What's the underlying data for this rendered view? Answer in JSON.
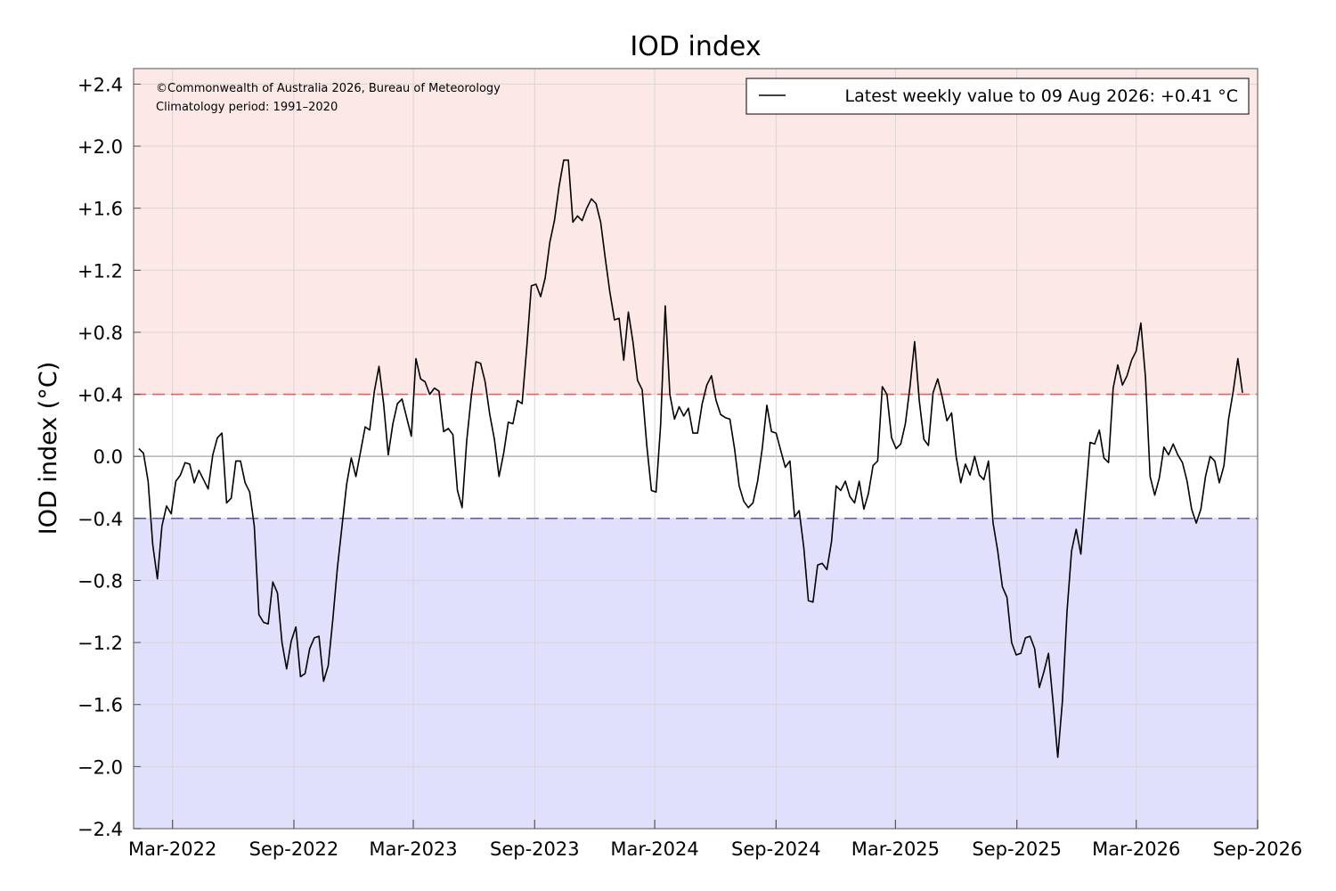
{
  "chart_data": {
    "type": "line",
    "title": "IOD index",
    "xlabel": "",
    "ylabel": "IOD index (°C)",
    "ylim": [
      -2.4,
      2.5
    ],
    "xlim": [
      "2022-01-01",
      "2026-09-01"
    ],
    "grid": true,
    "y_ticks": [
      {
        "value": 2.4,
        "label": "+2.4"
      },
      {
        "value": 2.0,
        "label": "+2.0"
      },
      {
        "value": 1.6,
        "label": "+1.6"
      },
      {
        "value": 1.2,
        "label": "+1.2"
      },
      {
        "value": 0.8,
        "label": "+0.8"
      },
      {
        "value": 0.4,
        "label": "+0.4"
      },
      {
        "value": 0.0,
        "label": "0.0"
      },
      {
        "value": -0.4,
        "label": "−0.4"
      },
      {
        "value": -0.8,
        "label": "−0.8"
      },
      {
        "value": -1.2,
        "label": "−1.2"
      },
      {
        "value": -1.6,
        "label": "−1.6"
      },
      {
        "value": -2.0,
        "label": "−2.0"
      },
      {
        "value": -2.4,
        "label": "−2.4"
      }
    ],
    "x_ticks": [
      {
        "date": "2022-03-01",
        "label": "Mar-2022"
      },
      {
        "date": "2022-09-01",
        "label": "Sep-2022"
      },
      {
        "date": "2023-03-01",
        "label": "Mar-2023"
      },
      {
        "date": "2023-09-01",
        "label": "Sep-2023"
      },
      {
        "date": "2024-03-01",
        "label": "Mar-2024"
      },
      {
        "date": "2024-09-01",
        "label": "Sep-2024"
      },
      {
        "date": "2025-03-01",
        "label": "Mar-2025"
      },
      {
        "date": "2025-09-01",
        "label": "Sep-2025"
      },
      {
        "date": "2026-03-01",
        "label": "Mar-2026"
      },
      {
        "date": "2026-09-01",
        "label": "Sep-2026"
      }
    ],
    "thresholds": [
      {
        "value": 0.4,
        "color": "#e86060"
      },
      {
        "value": -0.4,
        "color": "#6060b8"
      }
    ],
    "regions": [
      {
        "from": 0.4,
        "to": 2.5,
        "color": "#fde8e8"
      },
      {
        "from": -2.4,
        "to": -0.4,
        "color": "#e0e0fc"
      }
    ],
    "annotations": [
      "©Commonwealth of Australia 2026, Bureau of Meteorology",
      "Climatology period: 1991–2020"
    ],
    "legend": {
      "position": "top-right",
      "label": "Latest weekly value to 09 Aug 2026: +0.41 °C"
    },
    "series": [
      {
        "name": "Latest weekly value to 09 Aug 2026: +0.41 °C",
        "color": "#000000",
        "points": [
          [
            "2022-01-09",
            0.05
          ],
          [
            "2022-01-16",
            0.02
          ],
          [
            "2022-01-23",
            -0.16
          ],
          [
            "2022-01-30",
            -0.57
          ],
          [
            "2022-02-06",
            -0.79
          ],
          [
            "2022-02-13",
            -0.45
          ],
          [
            "2022-02-20",
            -0.32
          ],
          [
            "2022-02-27",
            -0.37
          ],
          [
            "2022-03-06",
            -0.16
          ],
          [
            "2022-03-13",
            -0.12
          ],
          [
            "2022-03-20",
            -0.04
          ],
          [
            "2022-03-27",
            -0.05
          ],
          [
            "2022-04-03",
            -0.17
          ],
          [
            "2022-04-10",
            -0.09
          ],
          [
            "2022-04-17",
            -0.15
          ],
          [
            "2022-04-24",
            -0.21
          ],
          [
            "2022-05-01",
            0.01
          ],
          [
            "2022-05-08",
            0.12
          ],
          [
            "2022-05-15",
            0.15
          ],
          [
            "2022-05-22",
            -0.3
          ],
          [
            "2022-05-29",
            -0.27
          ],
          [
            "2022-06-05",
            -0.03
          ],
          [
            "2022-06-12",
            -0.03
          ],
          [
            "2022-06-19",
            -0.17
          ],
          [
            "2022-06-26",
            -0.23
          ],
          [
            "2022-07-03",
            -0.45
          ],
          [
            "2022-07-10",
            -1.02
          ],
          [
            "2022-07-17",
            -1.07
          ],
          [
            "2022-07-24",
            -1.08
          ],
          [
            "2022-07-31",
            -0.81
          ],
          [
            "2022-08-07",
            -0.88
          ],
          [
            "2022-08-14",
            -1.2
          ],
          [
            "2022-08-21",
            -1.37
          ],
          [
            "2022-08-28",
            -1.19
          ],
          [
            "2022-09-04",
            -1.1
          ],
          [
            "2022-09-11",
            -1.42
          ],
          [
            "2022-09-18",
            -1.4
          ],
          [
            "2022-09-25",
            -1.24
          ],
          [
            "2022-10-02",
            -1.17
          ],
          [
            "2022-10-09",
            -1.16
          ],
          [
            "2022-10-16",
            -1.45
          ],
          [
            "2022-10-23",
            -1.35
          ],
          [
            "2022-10-30",
            -1.05
          ],
          [
            "2022-11-06",
            -0.72
          ],
          [
            "2022-11-13",
            -0.45
          ],
          [
            "2022-11-20",
            -0.18
          ],
          [
            "2022-11-27",
            -0.01
          ],
          [
            "2022-12-04",
            -0.13
          ],
          [
            "2022-12-11",
            0.03
          ],
          [
            "2022-12-18",
            0.19
          ],
          [
            "2022-12-25",
            0.17
          ],
          [
            "2023-01-01",
            0.42
          ],
          [
            "2023-01-08",
            0.58
          ],
          [
            "2023-01-15",
            0.34
          ],
          [
            "2023-01-22",
            0.01
          ],
          [
            "2023-01-29",
            0.21
          ],
          [
            "2023-02-05",
            0.34
          ],
          [
            "2023-02-12",
            0.37
          ],
          [
            "2023-02-19",
            0.25
          ],
          [
            "2023-02-26",
            0.13
          ],
          [
            "2023-03-05",
            0.63
          ],
          [
            "2023-03-12",
            0.5
          ],
          [
            "2023-03-19",
            0.48
          ],
          [
            "2023-03-26",
            0.4
          ],
          [
            "2023-04-02",
            0.44
          ],
          [
            "2023-04-09",
            0.42
          ],
          [
            "2023-04-16",
            0.16
          ],
          [
            "2023-04-23",
            0.18
          ],
          [
            "2023-04-30",
            0.14
          ],
          [
            "2023-05-07",
            -0.22
          ],
          [
            "2023-05-14",
            -0.33
          ],
          [
            "2023-05-21",
            0.1
          ],
          [
            "2023-05-28",
            0.39
          ],
          [
            "2023-06-04",
            0.61
          ],
          [
            "2023-06-11",
            0.6
          ],
          [
            "2023-06-18",
            0.48
          ],
          [
            "2023-06-25",
            0.27
          ],
          [
            "2023-07-02",
            0.11
          ],
          [
            "2023-07-09",
            -0.13
          ],
          [
            "2023-07-16",
            0.02
          ],
          [
            "2023-07-23",
            0.22
          ],
          [
            "2023-07-30",
            0.21
          ],
          [
            "2023-08-06",
            0.36
          ],
          [
            "2023-08-13",
            0.34
          ],
          [
            "2023-08-20",
            0.7
          ],
          [
            "2023-08-27",
            1.1
          ],
          [
            "2023-09-03",
            1.11
          ],
          [
            "2023-09-10",
            1.03
          ],
          [
            "2023-09-17",
            1.15
          ],
          [
            "2023-09-24",
            1.38
          ],
          [
            "2023-10-01",
            1.52
          ],
          [
            "2023-10-08",
            1.74
          ],
          [
            "2023-10-15",
            1.91
          ],
          [
            "2023-10-22",
            1.91
          ],
          [
            "2023-10-29",
            1.51
          ],
          [
            "2023-11-05",
            1.55
          ],
          [
            "2023-11-12",
            1.52
          ],
          [
            "2023-11-19",
            1.6
          ],
          [
            "2023-11-26",
            1.66
          ],
          [
            "2023-12-03",
            1.63
          ],
          [
            "2023-12-10",
            1.51
          ],
          [
            "2023-12-17",
            1.28
          ],
          [
            "2023-12-24",
            1.06
          ],
          [
            "2023-12-31",
            0.88
          ],
          [
            "2024-01-07",
            0.89
          ],
          [
            "2024-01-14",
            0.62
          ],
          [
            "2024-01-21",
            0.93
          ],
          [
            "2024-01-28",
            0.74
          ],
          [
            "2024-02-04",
            0.49
          ],
          [
            "2024-02-11",
            0.43
          ],
          [
            "2024-02-18",
            0.07
          ],
          [
            "2024-02-25",
            -0.22
          ],
          [
            "2024-03-03",
            -0.23
          ],
          [
            "2024-03-10",
            0.2
          ],
          [
            "2024-03-17",
            0.97
          ],
          [
            "2024-03-24",
            0.4
          ],
          [
            "2024-03-31",
            0.24
          ],
          [
            "2024-04-07",
            0.32
          ],
          [
            "2024-04-14",
            0.26
          ],
          [
            "2024-04-21",
            0.31
          ],
          [
            "2024-04-28",
            0.15
          ],
          [
            "2024-05-05",
            0.15
          ],
          [
            "2024-05-12",
            0.34
          ],
          [
            "2024-05-19",
            0.46
          ],
          [
            "2024-05-26",
            0.52
          ],
          [
            "2024-06-02",
            0.36
          ],
          [
            "2024-06-09",
            0.27
          ],
          [
            "2024-06-16",
            0.25
          ],
          [
            "2024-06-23",
            0.24
          ],
          [
            "2024-06-30",
            0.05
          ],
          [
            "2024-07-07",
            -0.19
          ],
          [
            "2024-07-14",
            -0.29
          ],
          [
            "2024-07-21",
            -0.33
          ],
          [
            "2024-07-28",
            -0.3
          ],
          [
            "2024-08-04",
            -0.16
          ],
          [
            "2024-08-11",
            0.05
          ],
          [
            "2024-08-18",
            0.33
          ],
          [
            "2024-08-25",
            0.16
          ],
          [
            "2024-09-01",
            0.15
          ],
          [
            "2024-09-08",
            0.04
          ],
          [
            "2024-09-15",
            -0.07
          ],
          [
            "2024-09-22",
            -0.03
          ],
          [
            "2024-09-29",
            -0.39
          ],
          [
            "2024-10-06",
            -0.35
          ],
          [
            "2024-10-13",
            -0.59
          ],
          [
            "2024-10-20",
            -0.93
          ],
          [
            "2024-10-27",
            -0.94
          ],
          [
            "2024-11-03",
            -0.7
          ],
          [
            "2024-11-10",
            -0.69
          ],
          [
            "2024-11-17",
            -0.73
          ],
          [
            "2024-11-24",
            -0.55
          ],
          [
            "2024-12-01",
            -0.19
          ],
          [
            "2024-12-08",
            -0.22
          ],
          [
            "2024-12-15",
            -0.16
          ],
          [
            "2024-12-22",
            -0.26
          ],
          [
            "2024-12-29",
            -0.3
          ],
          [
            "2025-01-05",
            -0.16
          ],
          [
            "2025-01-12",
            -0.34
          ],
          [
            "2025-01-19",
            -0.24
          ],
          [
            "2025-01-26",
            -0.06
          ],
          [
            "2025-02-02",
            -0.03
          ],
          [
            "2025-02-09",
            0.45
          ],
          [
            "2025-02-16",
            0.4
          ],
          [
            "2025-02-23",
            0.12
          ],
          [
            "2025-03-02",
            0.05
          ],
          [
            "2025-03-09",
            0.08
          ],
          [
            "2025-03-16",
            0.21
          ],
          [
            "2025-03-23",
            0.45
          ],
          [
            "2025-03-30",
            0.74
          ],
          [
            "2025-04-06",
            0.36
          ],
          [
            "2025-04-13",
            0.11
          ],
          [
            "2025-04-20",
            0.07
          ],
          [
            "2025-04-27",
            0.41
          ],
          [
            "2025-05-04",
            0.5
          ],
          [
            "2025-05-11",
            0.38
          ],
          [
            "2025-05-18",
            0.23
          ],
          [
            "2025-05-25",
            0.28
          ],
          [
            "2025-06-01",
            0.0
          ],
          [
            "2025-06-08",
            -0.17
          ],
          [
            "2025-06-15",
            -0.05
          ],
          [
            "2025-06-22",
            -0.12
          ],
          [
            "2025-06-29",
            0.0
          ],
          [
            "2025-07-06",
            -0.12
          ],
          [
            "2025-07-13",
            -0.15
          ],
          [
            "2025-07-20",
            -0.03
          ],
          [
            "2025-07-27",
            -0.43
          ],
          [
            "2025-08-03",
            -0.61
          ],
          [
            "2025-08-10",
            -0.84
          ],
          [
            "2025-08-17",
            -0.91
          ],
          [
            "2025-08-24",
            -1.2
          ],
          [
            "2025-08-31",
            -1.28
          ],
          [
            "2025-09-07",
            -1.27
          ],
          [
            "2025-09-14",
            -1.17
          ],
          [
            "2025-09-21",
            -1.16
          ],
          [
            "2025-09-28",
            -1.24
          ],
          [
            "2025-10-05",
            -1.49
          ],
          [
            "2025-10-12",
            -1.39
          ],
          [
            "2025-10-19",
            -1.27
          ],
          [
            "2025-10-26",
            -1.59
          ],
          [
            "2025-11-02",
            -1.94
          ],
          [
            "2025-11-09",
            -1.58
          ],
          [
            "2025-11-16",
            -1.0
          ],
          [
            "2025-11-23",
            -0.61
          ],
          [
            "2025-11-30",
            -0.47
          ],
          [
            "2025-12-07",
            -0.63
          ],
          [
            "2025-12-14",
            -0.27
          ],
          [
            "2025-12-21",
            0.09
          ],
          [
            "2025-12-28",
            0.08
          ],
          [
            "2026-01-04",
            0.17
          ],
          [
            "2026-01-11",
            -0.01
          ],
          [
            "2026-01-18",
            -0.04
          ],
          [
            "2026-01-25",
            0.44
          ],
          [
            "2026-02-01",
            0.59
          ],
          [
            "2026-02-08",
            0.46
          ],
          [
            "2026-02-15",
            0.52
          ],
          [
            "2026-02-22",
            0.62
          ],
          [
            "2026-03-01",
            0.68
          ],
          [
            "2026-03-08",
            0.86
          ],
          [
            "2026-03-15",
            0.51
          ],
          [
            "2026-03-22",
            -0.13
          ],
          [
            "2026-03-29",
            -0.25
          ],
          [
            "2026-04-05",
            -0.14
          ],
          [
            "2026-04-12",
            0.06
          ],
          [
            "2026-04-19",
            0.01
          ],
          [
            "2026-04-26",
            0.08
          ],
          [
            "2026-05-03",
            0.01
          ],
          [
            "2026-05-10",
            -0.04
          ],
          [
            "2026-05-17",
            -0.16
          ],
          [
            "2026-05-24",
            -0.34
          ],
          [
            "2026-05-31",
            -0.43
          ],
          [
            "2026-06-07",
            -0.34
          ],
          [
            "2026-06-14",
            -0.13
          ],
          [
            "2026-06-21",
            0.0
          ],
          [
            "2026-06-28",
            -0.03
          ],
          [
            "2026-07-05",
            -0.17
          ],
          [
            "2026-07-12",
            -0.06
          ],
          [
            "2026-07-19",
            0.24
          ],
          [
            "2026-07-26",
            0.42
          ],
          [
            "2026-08-02",
            0.63
          ],
          [
            "2026-08-09",
            0.41
          ]
        ]
      }
    ]
  }
}
